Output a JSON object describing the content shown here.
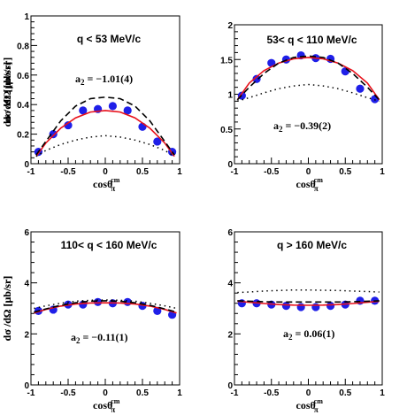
{
  "chart_data": [
    {
      "type": "scatter",
      "title": "q < 53 MeV/c",
      "annotation": "a",
      "annotation_sub": "2",
      "annotation_value": " = −1.01(4)",
      "xlabel": "cosθ",
      "xlabel_sub": "π",
      "xlabel_sup": "cm",
      "ylabel": "dσ /dΩ [μb/sr]",
      "xlim": [
        -1,
        1
      ],
      "ylim": [
        0,
        1
      ],
      "x_ticks": [
        "-1",
        "-0.5",
        "0",
        "0.5",
        "1"
      ],
      "y_ticks": [
        "0",
        "0.2",
        "0.4",
        "0.6",
        "0.8",
        "1"
      ],
      "y_tick_values": [
        0,
        0.2,
        0.4,
        0.6,
        0.8,
        1
      ],
      "series": [
        {
          "style": "markers",
          "x": [
            -0.9,
            -0.7,
            -0.5,
            -0.3,
            -0.1,
            0.1,
            0.3,
            0.5,
            0.7,
            0.9
          ],
          "y": [
            0.08,
            0.2,
            0.26,
            0.36,
            0.37,
            0.39,
            0.36,
            0.25,
            0.15,
            0.08
          ]
        },
        {
          "style": "solid",
          "x": [
            -0.93,
            -0.8,
            -0.6,
            -0.4,
            -0.2,
            0,
            0.2,
            0.4,
            0.6,
            0.8,
            0.93
          ],
          "y": [
            0.05,
            0.14,
            0.24,
            0.31,
            0.35,
            0.36,
            0.35,
            0.31,
            0.24,
            0.14,
            0.05
          ]
        },
        {
          "style": "dashed",
          "x": [
            -0.93,
            -0.8,
            -0.6,
            -0.4,
            -0.2,
            0,
            0.2,
            0.4,
            0.6,
            0.8,
            0.93
          ],
          "y": [
            0.06,
            0.15,
            0.29,
            0.39,
            0.44,
            0.45,
            0.44,
            0.39,
            0.29,
            0.15,
            0.06
          ]
        },
        {
          "style": "dotted",
          "x": [
            -0.93,
            -0.8,
            -0.6,
            -0.4,
            -0.2,
            0,
            0.2,
            0.4,
            0.6,
            0.8,
            0.93
          ],
          "y": [
            0.05,
            0.09,
            0.13,
            0.16,
            0.18,
            0.19,
            0.18,
            0.16,
            0.13,
            0.09,
            0.05
          ]
        }
      ]
    },
    {
      "type": "scatter",
      "title": "53< q < 110 MeV/c",
      "annotation": "a",
      "annotation_sub": "2",
      "annotation_value": " = −0.39(2)",
      "xlabel": "cosθ",
      "xlabel_sub": "π",
      "xlabel_sup": "cm",
      "ylabel": "dσ /dΩ [μb/sr]",
      "xlim": [
        -1,
        1
      ],
      "ylim": [
        0,
        2
      ],
      "x_ticks": [
        "-1",
        "-0.5",
        "0",
        "0.5",
        "1"
      ],
      "y_ticks": [
        "0",
        "0.5",
        "1",
        "1.5",
        "2"
      ],
      "y_tick_values": [
        0,
        0.5,
        1,
        1.5,
        2
      ],
      "series": [
        {
          "style": "markers",
          "x": [
            -0.9,
            -0.7,
            -0.5,
            -0.3,
            -0.1,
            0.1,
            0.3,
            0.5,
            0.7,
            0.9
          ],
          "y": [
            0.98,
            1.22,
            1.45,
            1.5,
            1.56,
            1.52,
            1.51,
            1.33,
            1.08,
            0.93
          ]
        },
        {
          "style": "solid",
          "x": [
            -0.96,
            -0.8,
            -0.6,
            -0.4,
            -0.2,
            0,
            0.2,
            0.4,
            0.6,
            0.8,
            0.96
          ],
          "y": [
            0.92,
            1.16,
            1.34,
            1.45,
            1.51,
            1.53,
            1.51,
            1.45,
            1.34,
            1.16,
            0.92
          ]
        },
        {
          "style": "dashed",
          "x": [
            -0.96,
            -0.8,
            -0.6,
            -0.4,
            -0.2,
            0,
            0.2,
            0.4,
            0.6,
            0.8,
            0.96
          ],
          "y": [
            0.92,
            1.1,
            1.3,
            1.45,
            1.53,
            1.55,
            1.53,
            1.45,
            1.3,
            1.1,
            0.92
          ]
        },
        {
          "style": "dotted",
          "x": [
            -0.96,
            -0.8,
            -0.6,
            -0.4,
            -0.2,
            0,
            0.2,
            0.4,
            0.6,
            0.8,
            0.96
          ],
          "y": [
            0.9,
            0.95,
            1.02,
            1.08,
            1.12,
            1.14,
            1.12,
            1.08,
            1.02,
            0.95,
            0.9
          ]
        }
      ]
    },
    {
      "type": "scatter",
      "title": "110< q < 160 MeV/c",
      "annotation": "a",
      "annotation_sub": "2",
      "annotation_value": " = −0.11(1)",
      "xlabel": "cosθ",
      "xlabel_sub": "π",
      "xlabel_sup": "cm",
      "ylabel": "dσ /dΩ [μb/sr]",
      "xlim": [
        -1,
        1
      ],
      "ylim": [
        0,
        6
      ],
      "x_ticks": [
        "-1",
        "-0.5",
        "0",
        "0.5",
        "1"
      ],
      "y_ticks": [
        "0",
        "2",
        "4",
        "6"
      ],
      "y_tick_values": [
        0,
        2,
        4,
        6
      ],
      "series": [
        {
          "style": "markers",
          "x": [
            -0.9,
            -0.7,
            -0.5,
            -0.3,
            -0.1,
            0.1,
            0.3,
            0.5,
            0.7,
            0.9
          ],
          "y": [
            2.9,
            2.95,
            3.15,
            3.15,
            3.25,
            3.2,
            3.25,
            3.1,
            2.9,
            2.75
          ]
        },
        {
          "style": "solid",
          "x": [
            -0.96,
            -0.8,
            -0.6,
            -0.4,
            -0.2,
            0,
            0.2,
            0.4,
            0.6,
            0.8,
            0.96
          ],
          "y": [
            2.82,
            2.96,
            3.09,
            3.17,
            3.21,
            3.22,
            3.21,
            3.17,
            3.09,
            2.96,
            2.82
          ]
        },
        {
          "style": "dashed",
          "x": [
            -0.96,
            -0.8,
            -0.6,
            -0.4,
            -0.2,
            0,
            0.2,
            0.4,
            0.6,
            0.8,
            0.96
          ],
          "y": [
            2.85,
            2.98,
            3.12,
            3.22,
            3.28,
            3.3,
            3.28,
            3.22,
            3.12,
            2.98,
            2.85
          ]
        },
        {
          "style": "dotted",
          "x": [
            -0.96,
            -0.8,
            -0.6,
            -0.4,
            -0.2,
            0,
            0.2,
            0.4,
            0.6,
            0.8,
            0.96
          ],
          "y": [
            3.0,
            3.1,
            3.2,
            3.28,
            3.32,
            3.33,
            3.32,
            3.28,
            3.2,
            3.1,
            3.0
          ]
        }
      ]
    },
    {
      "type": "scatter",
      "title": "q > 160 MeV/c",
      "annotation": "a",
      "annotation_sub": "2",
      "annotation_value": " = 0.06(1)",
      "xlabel": "cosθ",
      "xlabel_sub": "π",
      "xlabel_sup": "cm",
      "ylabel": "dσ /dΩ [μb/sr]",
      "xlim": [
        -1,
        1
      ],
      "ylim": [
        0,
        6
      ],
      "x_ticks": [
        "-1",
        "-0.5",
        "0",
        "0.5",
        "1"
      ],
      "y_ticks": [
        "0",
        "2",
        "4",
        "6"
      ],
      "y_tick_values": [
        0,
        2,
        4,
        6
      ],
      "series": [
        {
          "style": "markers",
          "x": [
            -0.9,
            -0.7,
            -0.5,
            -0.3,
            -0.1,
            0.1,
            0.3,
            0.5,
            0.7,
            0.9
          ],
          "y": [
            3.2,
            3.2,
            3.15,
            3.1,
            3.05,
            3.05,
            3.1,
            3.15,
            3.3,
            3.3
          ]
        },
        {
          "style": "solid",
          "x": [
            -0.96,
            -0.8,
            -0.6,
            -0.4,
            -0.2,
            0,
            0.2,
            0.4,
            0.6,
            0.8,
            0.96
          ],
          "y": [
            3.28,
            3.24,
            3.19,
            3.15,
            3.13,
            3.12,
            3.13,
            3.15,
            3.19,
            3.24,
            3.28
          ]
        },
        {
          "style": "dashed",
          "x": [
            -0.96,
            -0.8,
            -0.6,
            -0.4,
            -0.2,
            0,
            0.2,
            0.4,
            0.6,
            0.8,
            0.96
          ],
          "y": [
            3.3,
            3.28,
            3.26,
            3.25,
            3.25,
            3.25,
            3.25,
            3.25,
            3.26,
            3.28,
            3.3
          ]
        },
        {
          "style": "dotted",
          "x": [
            -0.96,
            -0.8,
            -0.6,
            -0.4,
            -0.2,
            0,
            0.2,
            0.4,
            0.6,
            0.8,
            0.96
          ],
          "y": [
            3.62,
            3.64,
            3.68,
            3.7,
            3.72,
            3.72,
            3.71,
            3.7,
            3.68,
            3.66,
            3.64
          ]
        }
      ]
    }
  ],
  "colors": {
    "marker": "#1f1fe8",
    "solid": "#e8101a",
    "lines": "#000000"
  }
}
